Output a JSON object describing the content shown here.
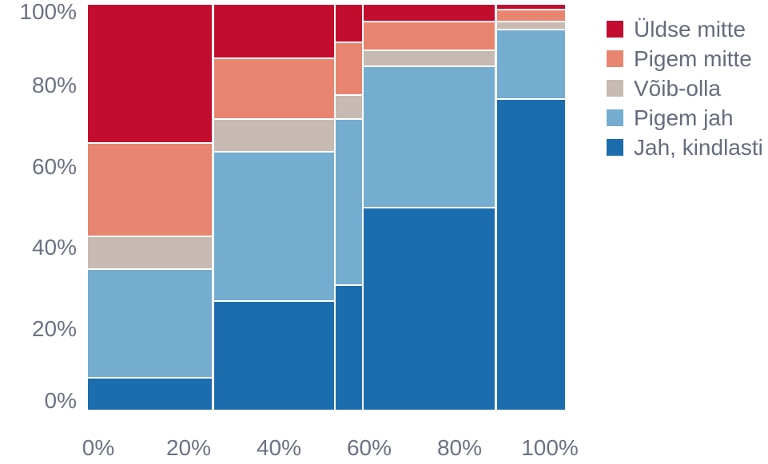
{
  "chart_data": {
    "type": "mosaic",
    "title": "",
    "xlabel": "",
    "ylabel": "",
    "grid": false,
    "legend_position": "right",
    "x_ticks": [
      "0%",
      "20%",
      "40%",
      "60%",
      "80%",
      "100%"
    ],
    "y_ticks": [
      "0%",
      "20%",
      "40%",
      "60%",
      "80%",
      "100%"
    ],
    "y_range": [
      0,
      100
    ],
    "x_range": [
      0,
      100
    ],
    "stack_order_top_to_bottom": [
      "Üldse mitte",
      "Pigem mitte",
      "Võib-olla",
      "Pigem jah",
      "Jah, kindlasti"
    ],
    "column_widths_pct": [
      26.5,
      25.6,
      5.5,
      28.0,
      14.5
    ],
    "series": [
      {
        "name": "Üldse mitte",
        "color": "#c20d2e",
        "values": [
          34,
          13,
          9,
          4,
          1
        ]
      },
      {
        "name": "Pigem mitte",
        "color": "#e88570",
        "values": [
          23,
          15,
          13,
          7,
          3
        ]
      },
      {
        "name": "Võib-olla",
        "color": "#c6bab2",
        "values": [
          8,
          8,
          6,
          4,
          2
        ]
      },
      {
        "name": "Pigem jah",
        "color": "#75add0",
        "values": [
          27,
          37,
          41,
          35,
          17
        ]
      },
      {
        "name": "Jah, kindlasti",
        "color": "#1c6dad",
        "values": [
          8,
          27,
          31,
          50,
          77
        ]
      }
    ]
  }
}
